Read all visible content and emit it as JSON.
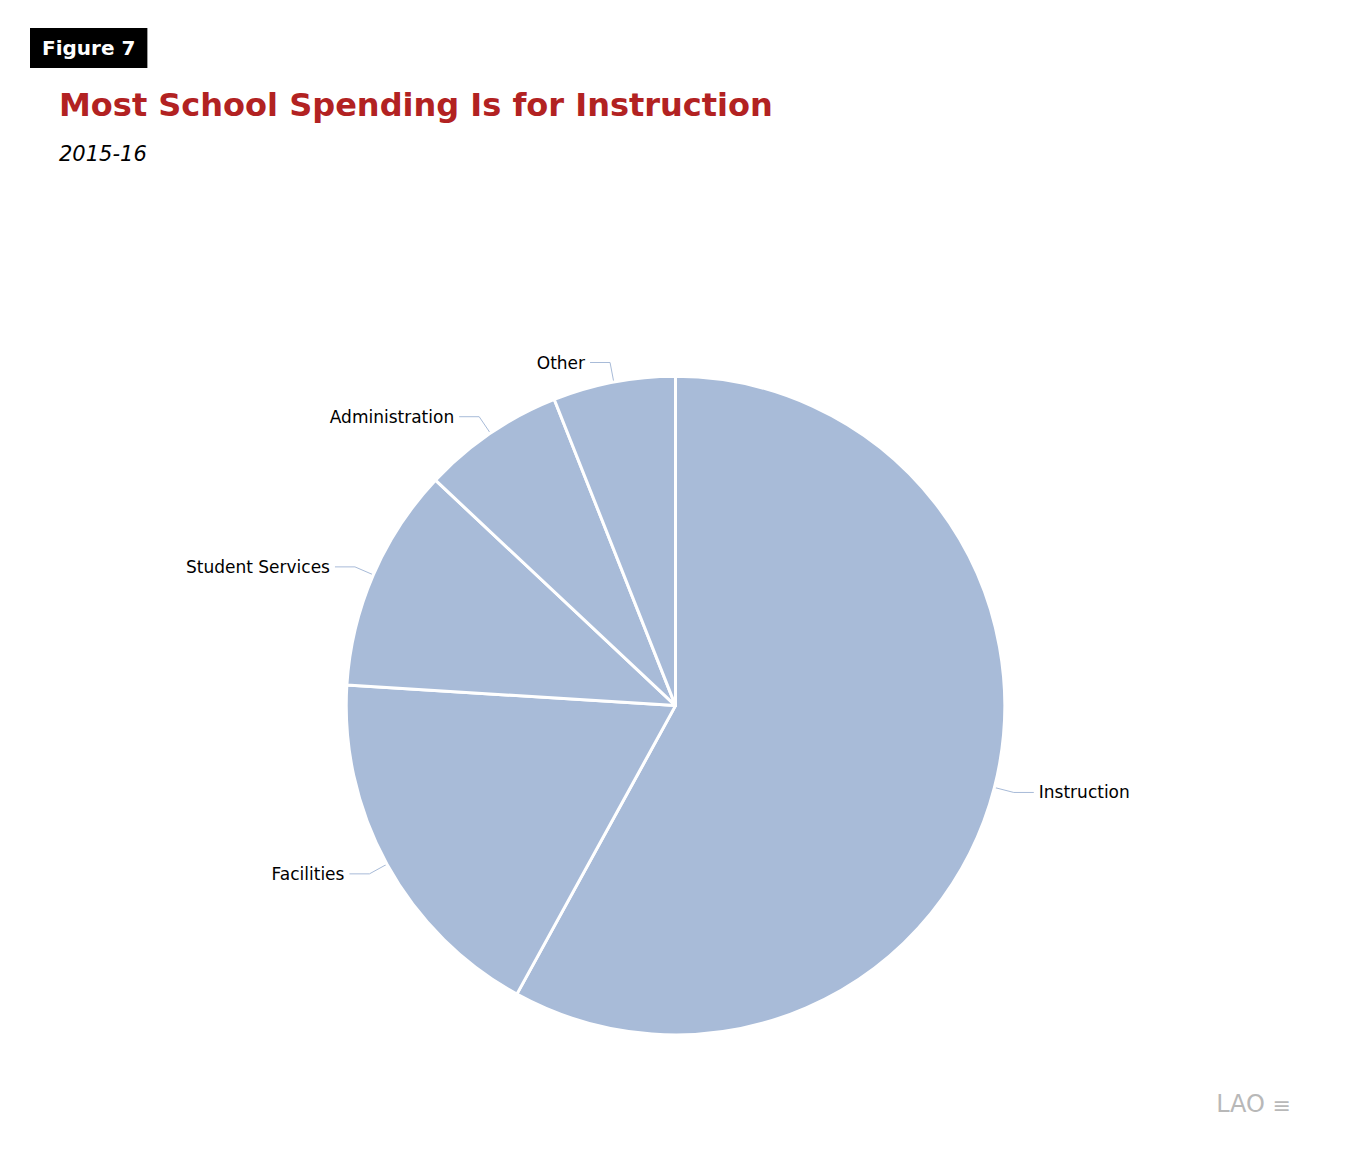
{
  "chart_data": {
    "type": "pie",
    "title": "Most School Spending Is for Instruction",
    "subtitle": "2015-16",
    "categories": [
      "Instruction",
      "Facilities",
      "Student Services",
      "Administration",
      "Other"
    ],
    "values": [
      58,
      18,
      11,
      7,
      6
    ],
    "color": "#a8bbd8",
    "annotations": [
      "Figure 7",
      "LAO",
      "≡"
    ]
  }
}
